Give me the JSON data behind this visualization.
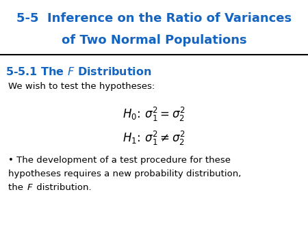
{
  "title_line1": "5-5  Inference on the Ratio of Variances",
  "title_line2": "of Two Normal Populations",
  "title_color": "#1565C0",
  "section_color": "#1565C0",
  "body_text1": "We wish to test the hypotheses:",
  "hypothesis_h0": "$H_0\\!:\\, \\sigma_1^2 = \\sigma_2^2$",
  "hypothesis_h1": "$H_1\\!:\\, \\sigma_1^2 \\neq \\sigma_2^2$",
  "bg_color": "#FFFFFF",
  "text_color": "#000000",
  "divider_color": "#000000",
  "fig_width": 4.5,
  "fig_height": 3.38,
  "dpi": 100
}
